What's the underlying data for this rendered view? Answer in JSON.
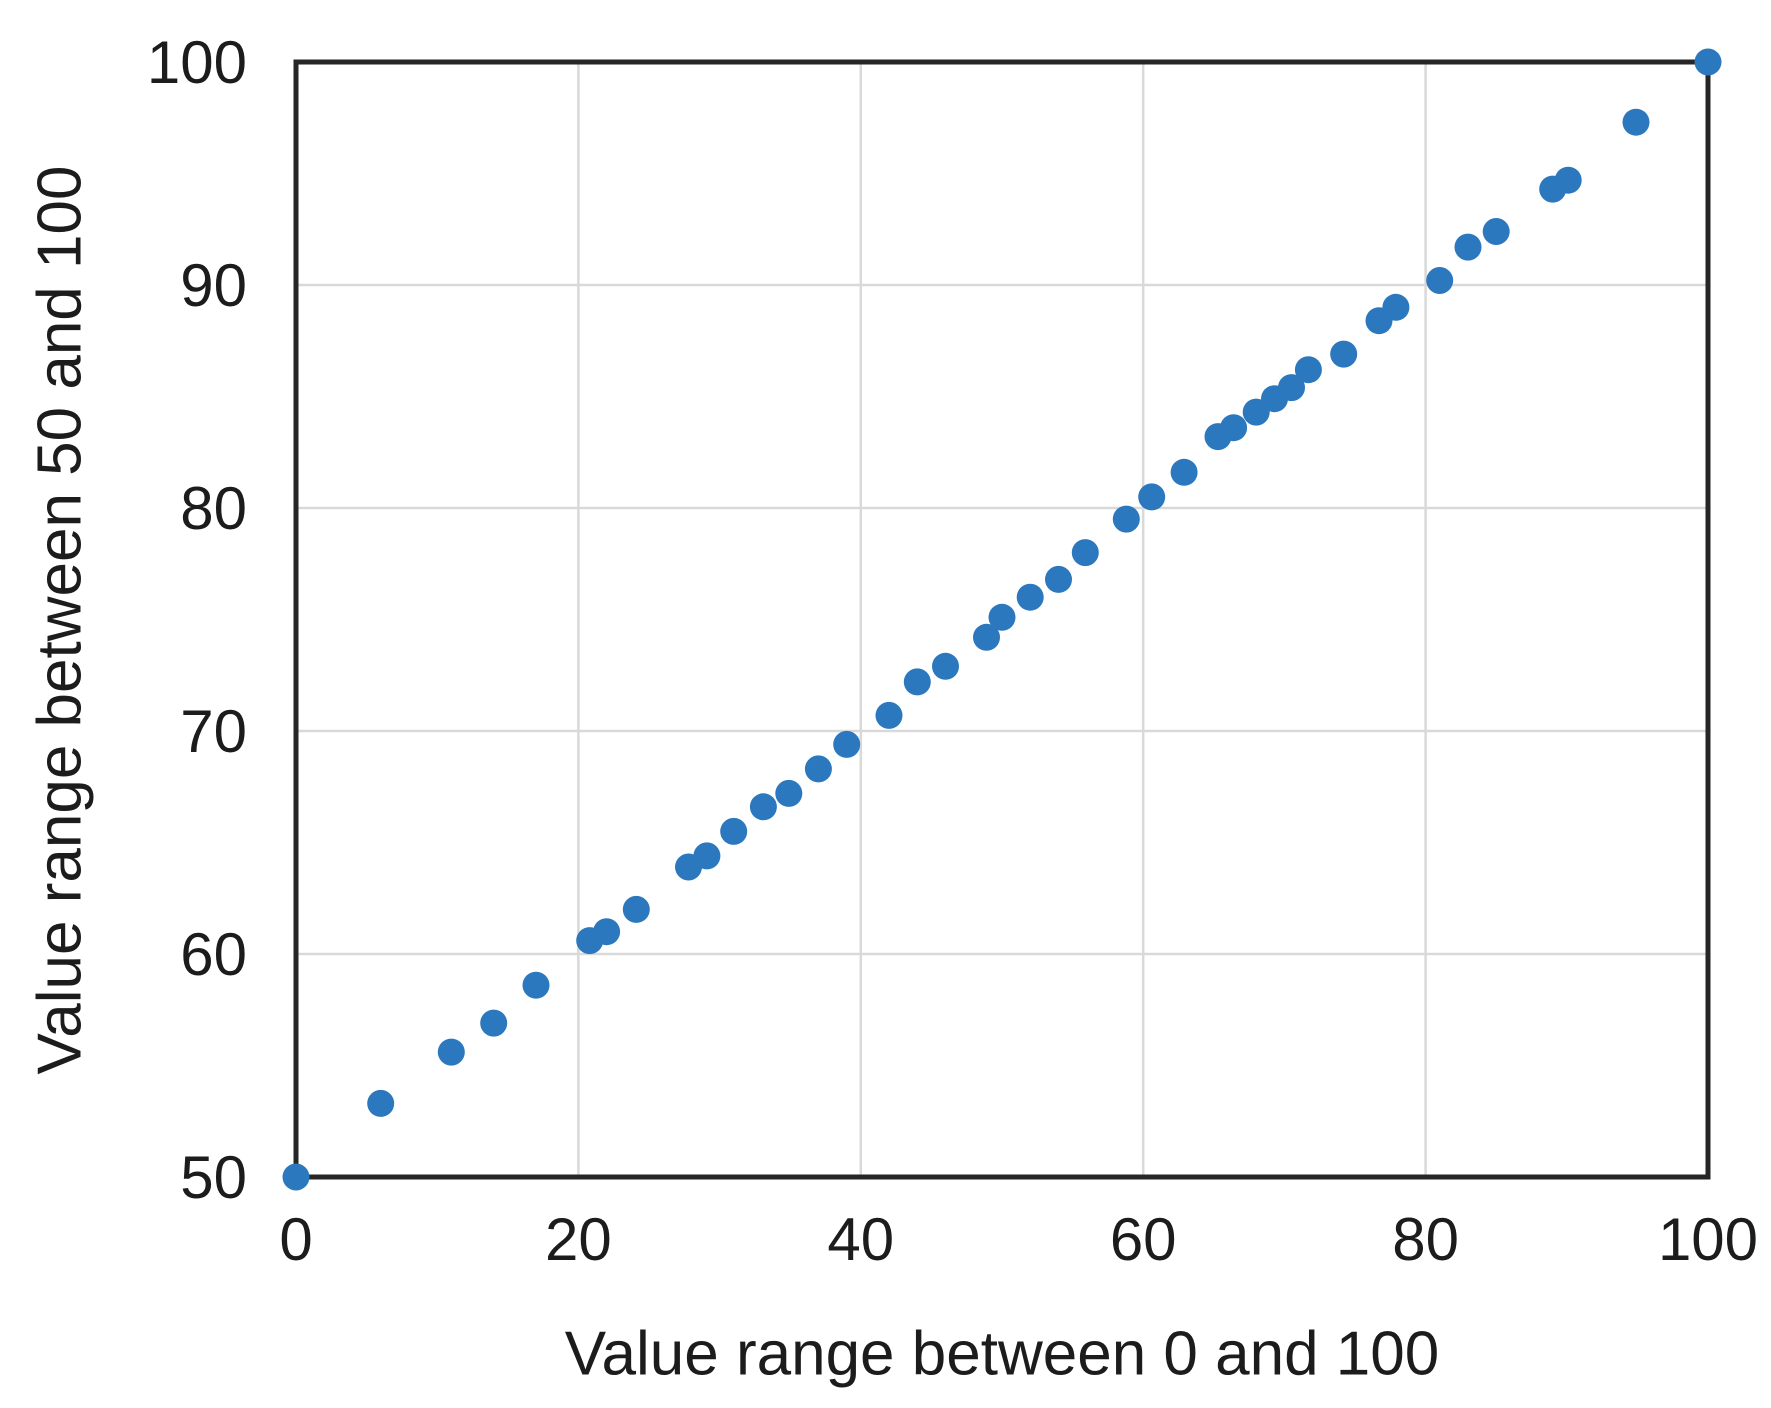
{
  "chart_data": {
    "type": "scatter",
    "title": "",
    "xlabel": "Value range between 0 and 100",
    "ylabel": "Value range between 50 and 100",
    "xlim": [
      0,
      100
    ],
    "ylim": [
      50,
      100
    ],
    "xticks": [
      0,
      20,
      40,
      60,
      80,
      100
    ],
    "yticks": [
      50,
      60,
      70,
      80,
      90,
      100
    ],
    "grid": true,
    "legend": "none",
    "marker_color": "#2b78be",
    "axis_color": "#262626",
    "grid_color": "#d9d9d9",
    "text_color": "#1c1c1c",
    "background_color": "#ffffff",
    "points": [
      [
        0,
        50.0
      ],
      [
        6,
        53.3
      ],
      [
        11,
        55.6
      ],
      [
        14,
        56.9
      ],
      [
        17,
        58.6
      ],
      [
        20.8,
        60.6
      ],
      [
        22.0,
        61.0
      ],
      [
        24.1,
        62.0
      ],
      [
        27.8,
        63.9
      ],
      [
        29.1,
        64.4
      ],
      [
        31.0,
        65.5
      ],
      [
        33.1,
        66.6
      ],
      [
        34.9,
        67.2
      ],
      [
        37.0,
        68.3
      ],
      [
        39.0,
        69.4
      ],
      [
        42.0,
        70.7
      ],
      [
        44.0,
        72.2
      ],
      [
        46.0,
        72.9
      ],
      [
        48.9,
        74.2
      ],
      [
        50.0,
        75.1
      ],
      [
        52.0,
        76.0
      ],
      [
        54.0,
        76.8
      ],
      [
        55.9,
        78.0
      ],
      [
        58.8,
        79.5
      ],
      [
        60.6,
        80.5
      ],
      [
        62.9,
        81.6
      ],
      [
        65.3,
        83.2
      ],
      [
        66.4,
        83.6
      ],
      [
        68.0,
        84.3
      ],
      [
        69.3,
        84.9
      ],
      [
        70.5,
        85.4
      ],
      [
        71.7,
        86.2
      ],
      [
        74.2,
        86.9
      ],
      [
        76.7,
        88.4
      ],
      [
        77.9,
        89.0
      ],
      [
        81.0,
        90.2
      ],
      [
        83.0,
        91.7
      ],
      [
        85.0,
        92.4
      ],
      [
        89.0,
        94.3
      ],
      [
        90.1,
        94.7
      ],
      [
        94.9,
        97.3
      ],
      [
        100,
        100.0
      ]
    ]
  }
}
